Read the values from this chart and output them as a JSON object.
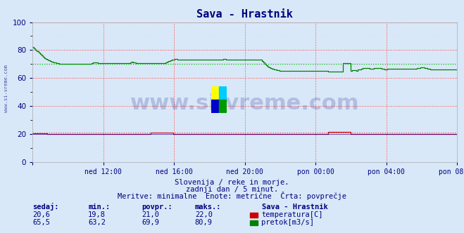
{
  "title": "Sava - Hrastnik",
  "title_color": "#000080",
  "bg_color": "#d8e8f8",
  "plot_bg_color": "#d8e8f8",
  "watermark_text": "www.si-vreme.com",
  "watermark_color": "#000080",
  "watermark_alpha": 0.18,
  "ylim": [
    0,
    100
  ],
  "yticks": [
    20,
    40,
    60,
    80
  ],
  "x_labels": [
    "ned 12:00",
    "ned 16:00",
    "ned 20:00",
    "pon 00:00",
    "pon 04:00",
    "pon 08:00"
  ],
  "subtitle1": "Slovenija / reke in morje.",
  "subtitle2": "zadnji dan / 5 minut.",
  "subtitle3": "Meritve: minimalne  Enote: metrične  Črta: povprečje",
  "subtitle_color": "#000080",
  "legend_title": "Sava - Hrastnik",
  "legend_color": "#000080",
  "legend_items": [
    {
      "label": "temperatura[C]",
      "color": "#cc0000"
    },
    {
      "label": "pretok[m3/s]",
      "color": "#008000"
    }
  ],
  "table_headers": [
    "sedaj:",
    "min.:",
    "povpr.:",
    "maks.:"
  ],
  "table_rows": [
    [
      "20,6",
      "19,8",
      "21,0",
      "22,0"
    ],
    [
      "65,5",
      "63,2",
      "69,9",
      "80,9"
    ]
  ],
  "table_color": "#000080",
  "side_text": "www.si-vreme.com",
  "side_text_color": "#000080",
  "temp_line_color": "#cc0000",
  "flow_line_color": "#008000",
  "temp_avg_color": "#ff4444",
  "flow_avg_color": "#00bb00",
  "temp_avg_value": 21.0,
  "flow_avg_value": 69.9,
  "n_points": 288
}
